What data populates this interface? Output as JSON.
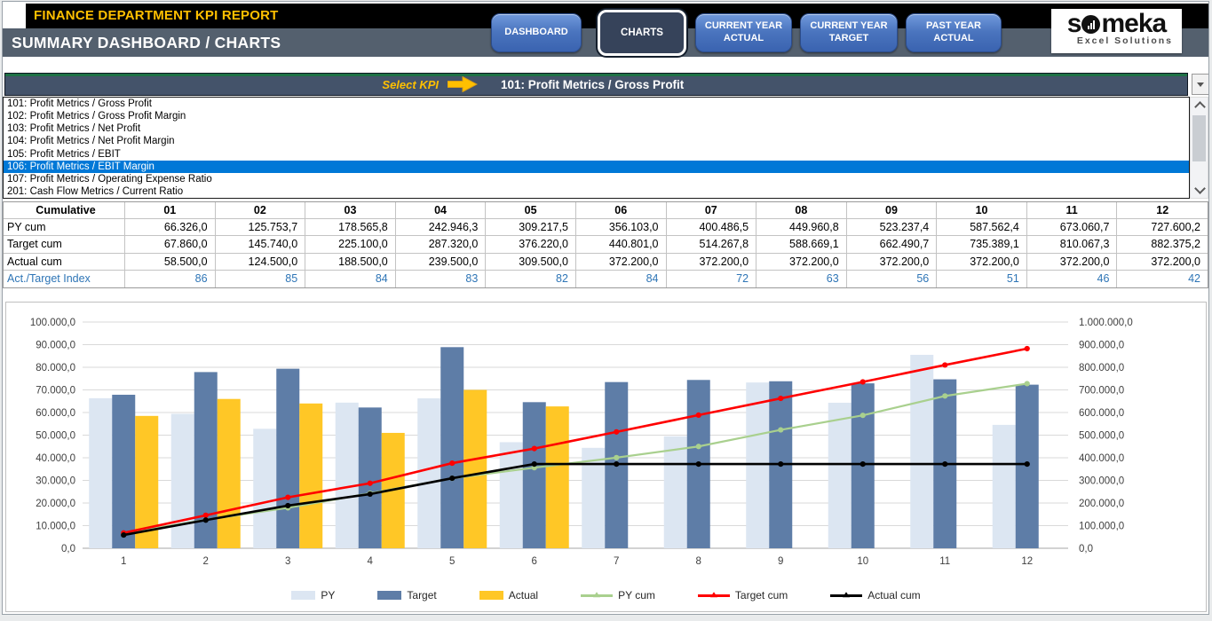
{
  "header": {
    "title": "FINANCE DEPARTMENT KPI REPORT",
    "subtitle": "SUMMARY DASHBOARD / CHARTS",
    "nav_buttons": [
      {
        "label": "DASHBOARD",
        "lines": [
          "DASHBOARD"
        ],
        "active": false
      },
      {
        "label": "CHARTS",
        "lines": [
          "CHARTS"
        ],
        "active": true
      },
      {
        "label": "CURRENT YEAR ACTUAL",
        "lines": [
          "CURRENT YEAR",
          "ACTUAL"
        ],
        "active": false
      },
      {
        "label": "CURRENT YEAR TARGET",
        "lines": [
          "CURRENT YEAR",
          "TARGET"
        ],
        "active": false
      },
      {
        "label": "PAST YEAR ACTUAL",
        "lines": [
          "PAST YEAR",
          "ACTUAL"
        ],
        "active": false
      }
    ],
    "logo": {
      "brand": "someka",
      "tagline": "Excel Solutions"
    }
  },
  "kpi_selector": {
    "label": "Select KPI",
    "selected": "101: Profit Metrics / Gross Profit",
    "highlighted_option": "106: Profit Metrics / EBIT Margin",
    "options": [
      "101: Profit Metrics / Gross Profit",
      "102: Profit Metrics / Gross Profit Margin",
      "103: Profit Metrics / Net Profit",
      "104: Profit Metrics / Net Profit Margin",
      "105: Profit Metrics / EBIT",
      "106: Profit Metrics / EBIT Margin",
      "107: Profit Metrics / Operating Expense Ratio",
      "201: Cash Flow Metrics / Current Ratio"
    ]
  },
  "cumulative_table": {
    "corner_header": "Cumulative",
    "month_headers": [
      "01",
      "02",
      "03",
      "04",
      "05",
      "06",
      "07",
      "08",
      "09",
      "10",
      "11",
      "12"
    ],
    "rows": [
      {
        "label": "PY cum",
        "accent": false,
        "values": [
          "66.326,0",
          "125.753,7",
          "178.565,8",
          "242.946,3",
          "309.217,5",
          "356.103,0",
          "400.486,5",
          "449.960,8",
          "523.237,4",
          "587.562,4",
          "673.060,7",
          "727.600,2"
        ]
      },
      {
        "label": "Target cum",
        "accent": false,
        "values": [
          "67.860,0",
          "145.740,0",
          "225.100,0",
          "287.320,0",
          "376.220,0",
          "440.801,0",
          "514.267,8",
          "588.669,1",
          "662.490,7",
          "735.389,1",
          "810.067,3",
          "882.375,2"
        ]
      },
      {
        "label": "Actual cum",
        "accent": false,
        "values": [
          "58.500,0",
          "124.500,0",
          "188.500,0",
          "239.500,0",
          "309.500,0",
          "372.200,0",
          "372.200,0",
          "372.200,0",
          "372.200,0",
          "372.200,0",
          "372.200,0",
          "372.200,0"
        ]
      },
      {
        "label": "Act./Target Index",
        "accent": true,
        "values": [
          "86",
          "85",
          "84",
          "83",
          "82",
          "84",
          "72",
          "63",
          "56",
          "51",
          "46",
          "42"
        ]
      }
    ]
  },
  "chart_data": {
    "type": "combo: clustered bar + line (lines on secondary axis)",
    "categories": [
      "1",
      "2",
      "3",
      "4",
      "5",
      "6",
      "7",
      "8",
      "9",
      "10",
      "11",
      "12"
    ],
    "bar_series": [
      {
        "name": "PY",
        "color": "#DCE6F2",
        "axis": "left",
        "values": [
          66326.0,
          59427.7,
          52812.1,
          64380.5,
          66271.2,
          46885.5,
          44383.5,
          49474.3,
          73276.6,
          64325.0,
          85498.3,
          54539.5
        ]
      },
      {
        "name": "Target",
        "color": "#5E7DA7",
        "axis": "left",
        "values": [
          67860.0,
          77880.0,
          79360.0,
          62220.0,
          88900.0,
          64581.0,
          73466.8,
          74401.3,
          73821.6,
          72898.4,
          74678.2,
          72307.9
        ]
      },
      {
        "name": "Actual",
        "color": "#FFC726",
        "axis": "left",
        "values": [
          58500.0,
          66000.0,
          64000.0,
          51000.0,
          70000.0,
          62700.0,
          0,
          0,
          0,
          0,
          0,
          0
        ]
      }
    ],
    "line_series": [
      {
        "name": "PY cum",
        "color": "#A9D08E",
        "axis": "right",
        "values": [
          66326.0,
          125753.7,
          178565.8,
          242946.3,
          309217.5,
          356103.0,
          400486.5,
          449960.8,
          523237.4,
          587562.4,
          673060.7,
          727600.2
        ]
      },
      {
        "name": "Target cum",
        "color": "#FF0000",
        "axis": "right",
        "values": [
          67860.0,
          145740.0,
          225100.0,
          287320.0,
          376220.0,
          440801.0,
          514267.8,
          588669.1,
          662490.7,
          735389.1,
          810067.3,
          882375.2
        ]
      },
      {
        "name": "Actual cum",
        "color": "#000000",
        "axis": "right",
        "values": [
          58500.0,
          124500.0,
          188500.0,
          239500.0,
          309500.0,
          372200.0,
          372200.0,
          372200.0,
          372200.0,
          372200.0,
          372200.0,
          372200.0
        ]
      }
    ],
    "left_axis": {
      "min": 0,
      "max": 100000,
      "step": 10000,
      "tick_labels": [
        "0,0",
        "10.000,0",
        "20.000,0",
        "30.000,0",
        "40.000,0",
        "50.000,0",
        "60.000,0",
        "70.000,0",
        "80.000,0",
        "90.000,0",
        "100.000,0"
      ]
    },
    "right_axis": {
      "min": 0,
      "max": 1000000,
      "step": 100000,
      "tick_labels": [
        "0,0",
        "100.000,0",
        "200.000,0",
        "300.000,0",
        "400.000,0",
        "500.000,0",
        "600.000,0",
        "700.000,0",
        "800.000,0",
        "900.000,0",
        "1.000.000,0"
      ]
    },
    "grid": "horizontal",
    "legend_position": "bottom",
    "legend": [
      {
        "label": "PY",
        "marker": "bar",
        "color": "#DCE6F2"
      },
      {
        "label": "Target",
        "marker": "bar",
        "color": "#5E7DA7"
      },
      {
        "label": "Actual",
        "marker": "bar",
        "color": "#FFC726"
      },
      {
        "label": "PY cum",
        "marker": "line",
        "color": "#A9D08E"
      },
      {
        "label": "Target cum",
        "marker": "line",
        "color": "#FF0000"
      },
      {
        "label": "Actual cum",
        "marker": "line",
        "color": "#000000"
      }
    ]
  },
  "colors": {
    "title_yellow": "#FFC000",
    "header_band": "#54606E",
    "selector_band": "#44536A",
    "selector_green_line": "#1E7145",
    "selection_blue": "#0078D7",
    "index_row_blue": "#2E75B6",
    "nav_button_blue": "#4472C4"
  }
}
